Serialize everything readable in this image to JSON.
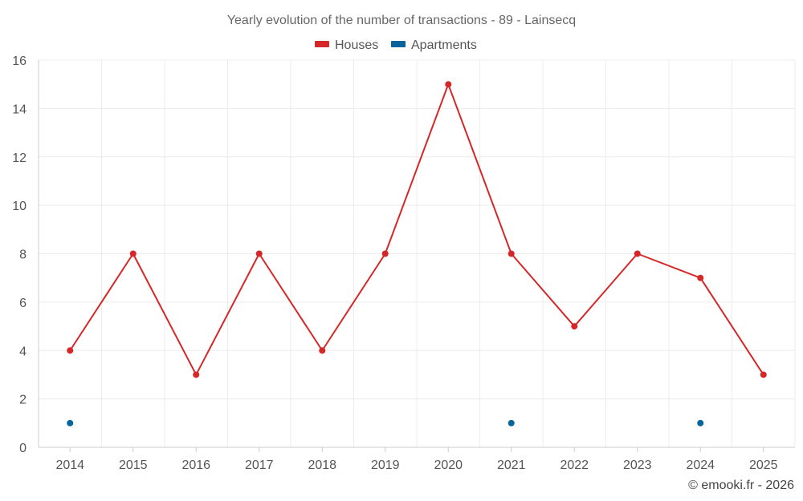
{
  "chart_data": {
    "type": "line",
    "title": "Yearly evolution of the number of transactions - 89 - Lainsecq",
    "x": [
      "2014",
      "2015",
      "2016",
      "2017",
      "2018",
      "2019",
      "2020",
      "2021",
      "2022",
      "2023",
      "2024",
      "2025"
    ],
    "series": [
      {
        "name": "Houses",
        "color": "#d62728",
        "values": [
          4,
          8,
          3,
          8,
          4,
          8,
          15,
          8,
          5,
          8,
          7,
          3
        ]
      },
      {
        "name": "Apartments",
        "color": "#05649b",
        "values": [
          1,
          null,
          null,
          null,
          null,
          null,
          null,
          1,
          null,
          null,
          1,
          null
        ]
      }
    ],
    "y_ticks": [
      0,
      2,
      4,
      6,
      8,
      10,
      12,
      14,
      16
    ],
    "ylim": [
      0,
      16
    ],
    "xlabel": "",
    "ylabel": "",
    "grid": true,
    "legend_position": "top-center"
  },
  "credit": "© emooki.fr - 2026"
}
